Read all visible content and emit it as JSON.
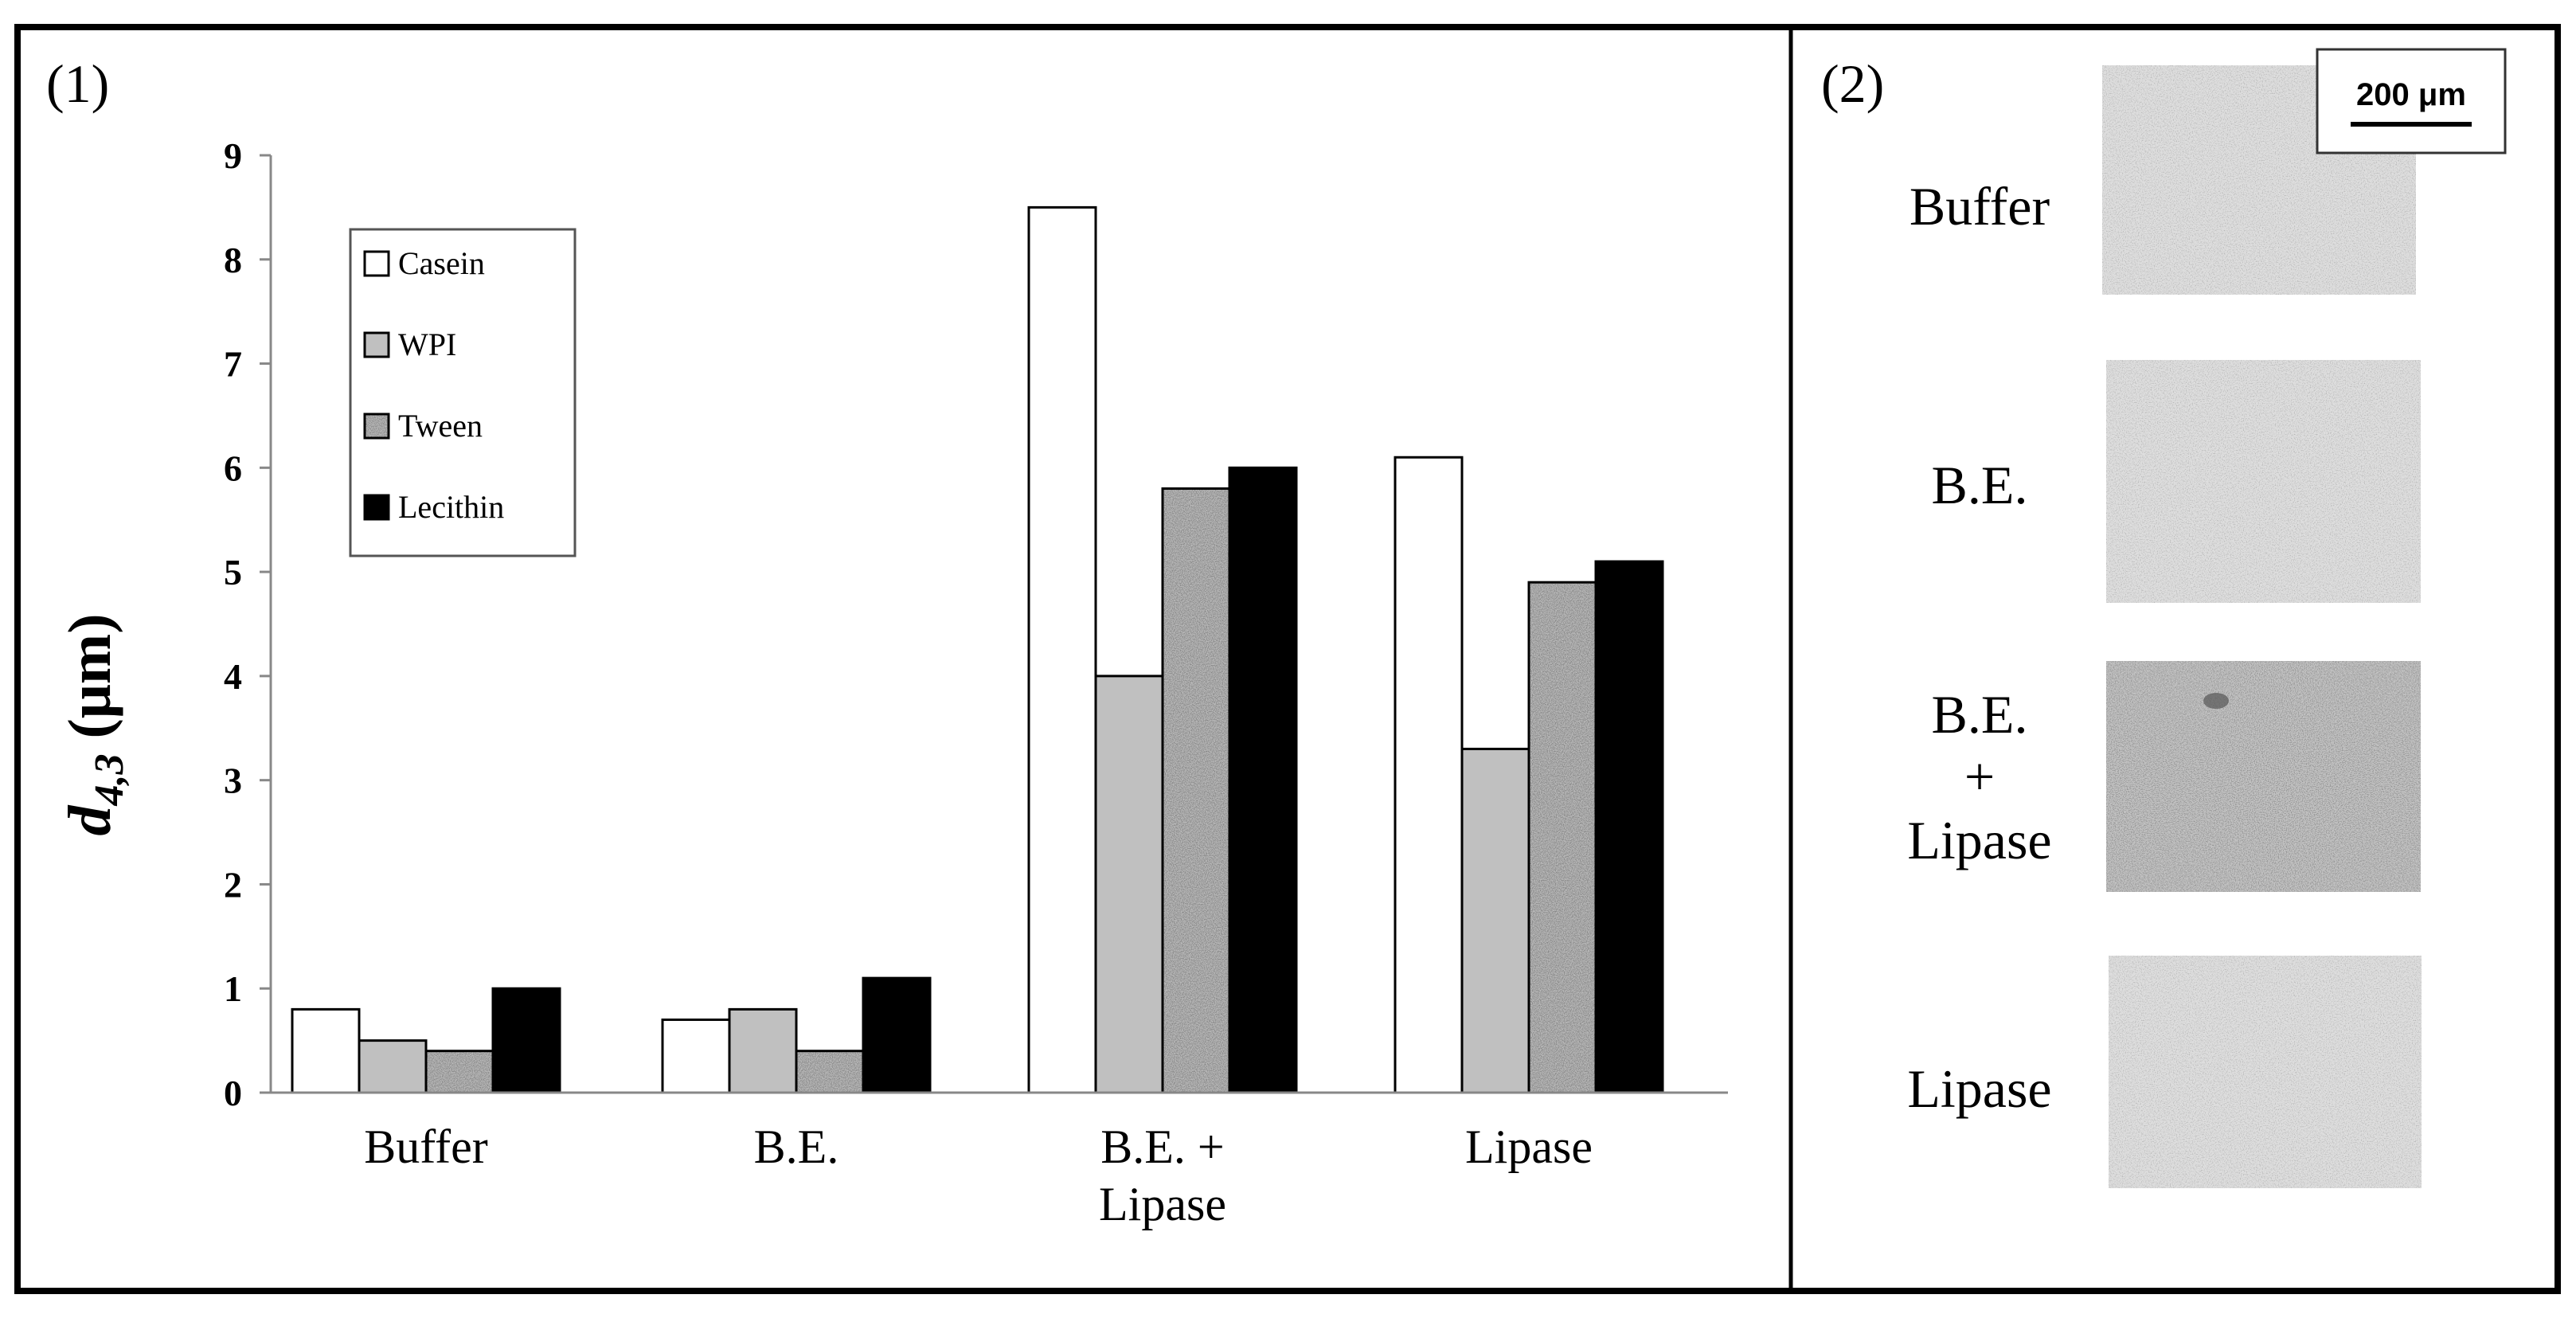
{
  "panel_labels": {
    "panel1": "(1)",
    "panel2": "(2)"
  },
  "chart_data": {
    "type": "bar",
    "ylabel_main": "d",
    "ylabel_sub": "4,3",
    "ylabel_unit": "(μm)",
    "ylim": [
      0,
      9
    ],
    "yticks": [
      "0",
      "1",
      "2",
      "3",
      "4",
      "5",
      "6",
      "7",
      "8",
      "9"
    ],
    "categories": [
      [
        "Buffer"
      ],
      [
        "B.E."
      ],
      [
        "B.E. +",
        "Lipase"
      ],
      [
        "Lipase"
      ]
    ],
    "series": [
      {
        "name": "Casein",
        "values": [
          0.8,
          0.7,
          8.5,
          6.1
        ],
        "fill": "#ffffff"
      },
      {
        "name": "WPI",
        "values": [
          0.5,
          0.8,
          4.0,
          3.3
        ],
        "fill": "#c0c0c0"
      },
      {
        "name": "Tween",
        "values": [
          0.4,
          0.4,
          5.8,
          4.9
        ],
        "fill": "speckle"
      },
      {
        "name": "Lecithin",
        "values": [
          1.0,
          1.1,
          6.0,
          5.1
        ],
        "fill": "#000000"
      }
    ],
    "legend_position": "top-left",
    "grid": false
  },
  "micrographs": {
    "scale_bar_label": "200 μm",
    "items": [
      {
        "label_lines": [
          "Buffer"
        ]
      },
      {
        "label_lines": [
          "B.E."
        ]
      },
      {
        "label_lines": [
          "B.E.",
          "+",
          "Lipase"
        ]
      },
      {
        "label_lines": [
          "Lipase"
        ]
      }
    ]
  }
}
